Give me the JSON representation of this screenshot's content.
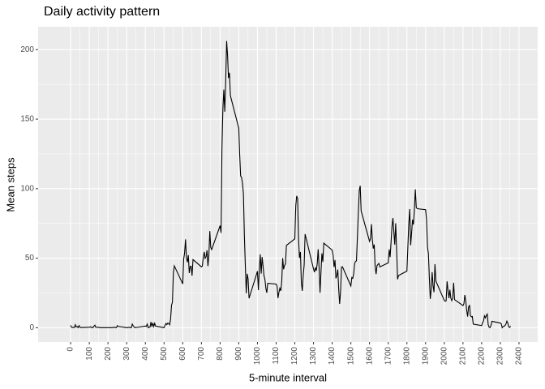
{
  "chart_data": {
    "type": "line",
    "title": "Daily activity pattern",
    "xlabel": "5-minute interval",
    "ylabel": "Mean steps",
    "x": [
      0,
      5,
      10,
      15,
      20,
      25,
      30,
      35,
      40,
      45,
      50,
      55,
      100,
      105,
      110,
      115,
      120,
      125,
      130,
      135,
      140,
      145,
      150,
      155,
      200,
      205,
      210,
      215,
      220,
      225,
      230,
      235,
      240,
      245,
      250,
      255,
      300,
      305,
      310,
      315,
      320,
      325,
      330,
      335,
      340,
      345,
      350,
      355,
      400,
      405,
      410,
      415,
      420,
      425,
      430,
      435,
      440,
      445,
      450,
      455,
      500,
      505,
      510,
      515,
      520,
      525,
      530,
      535,
      540,
      545,
      550,
      555,
      600,
      605,
      610,
      615,
      620,
      625,
      630,
      635,
      640,
      645,
      650,
      655,
      700,
      705,
      710,
      715,
      720,
      725,
      730,
      735,
      740,
      745,
      750,
      755,
      800,
      805,
      810,
      815,
      820,
      825,
      830,
      835,
      840,
      845,
      850,
      855,
      900,
      905,
      910,
      915,
      920,
      925,
      930,
      935,
      940,
      945,
      950,
      955,
      1000,
      1005,
      1010,
      1015,
      1020,
      1025,
      1030,
      1035,
      1040,
      1045,
      1050,
      1055,
      1100,
      1105,
      1110,
      1115,
      1120,
      1125,
      1130,
      1135,
      1140,
      1145,
      1150,
      1155,
      1200,
      1205,
      1210,
      1215,
      1220,
      1225,
      1230,
      1235,
      1240,
      1245,
      1250,
      1255,
      1300,
      1305,
      1310,
      1315,
      1320,
      1325,
      1330,
      1335,
      1340,
      1345,
      1350,
      1355,
      1400,
      1405,
      1410,
      1415,
      1420,
      1425,
      1430,
      1435,
      1440,
      1445,
      1450,
      1455,
      1500,
      1505,
      1510,
      1515,
      1520,
      1525,
      1530,
      1535,
      1540,
      1545,
      1550,
      1555,
      1600,
      1605,
      1610,
      1615,
      1620,
      1625,
      1630,
      1635,
      1640,
      1645,
      1650,
      1655,
      1700,
      1705,
      1710,
      1715,
      1720,
      1725,
      1730,
      1735,
      1740,
      1745,
      1750,
      1755,
      1800,
      1805,
      1810,
      1815,
      1820,
      1825,
      1830,
      1835,
      1840,
      1845,
      1850,
      1855,
      1900,
      1905,
      1910,
      1915,
      1920,
      1925,
      1930,
      1935,
      1940,
      1945,
      1950,
      1955,
      2000,
      2005,
      2010,
      2015,
      2020,
      2025,
      2030,
      2035,
      2040,
      2045,
      2050,
      2055,
      2100,
      2105,
      2110,
      2115,
      2120,
      2125,
      2130,
      2135,
      2140,
      2145,
      2150,
      2155,
      2200,
      2205,
      2210,
      2215,
      2220,
      2225,
      2230,
      2235,
      2240,
      2245,
      2250,
      2255,
      2300,
      2305,
      2310,
      2315,
      2320,
      2325,
      2330,
      2335,
      2340,
      2345,
      2350,
      2355
    ],
    "series": [
      {
        "name": "Mean steps",
        "color": "#000000",
        "values": [
          1.7,
          0.3,
          0.1,
          0.2,
          0.1,
          2.1,
          0.5,
          0.9,
          0,
          1.5,
          0.3,
          0.1,
          0.3,
          0.7,
          0.2,
          0.3,
          0,
          1.1,
          1.8,
          0.2,
          0.2,
          0.4,
          0.3,
          0,
          0,
          0,
          0,
          0,
          0,
          0,
          0.3,
          0.3,
          0,
          0,
          1.5,
          0.9,
          0,
          0,
          0.2,
          0.3,
          0,
          0,
          2.6,
          1.3,
          0.5,
          0,
          0.1,
          0.2,
          1.2,
          0.9,
          2.6,
          0,
          0.3,
          0.4,
          4.1,
          0.7,
          3.5,
          0.8,
          3.1,
          1.1,
          0,
          1.6,
          3,
          2.2,
          3.3,
          3,
          2.1,
          6.1,
          16,
          18.3,
          39.5,
          44.5,
          31.5,
          49.3,
          53.8,
          63.5,
          50,
          47.1,
          52.2,
          39.3,
          44,
          44.2,
          37.4,
          49,
          43.8,
          44.4,
          50.5,
          54.5,
          49.9,
          51,
          55.7,
          44.3,
          52.3,
          69.5,
          57.8,
          56.2,
          73.4,
          68.2,
          129.4,
          157.5,
          171.2,
          155.4,
          177.3,
          206.2,
          195.9,
          179.6,
          183.4,
          167,
          143.5,
          124,
          109.1,
          108.1,
          103.7,
          96,
          66.2,
          45.2,
          24.8,
          38.8,
          35,
          21.1,
          40.6,
          27,
          42.4,
          52.7,
          38.9,
          50.8,
          44.3,
          37.4,
          34.7,
          28.3,
          25.1,
          31.9,
          31.4,
          29.7,
          21.3,
          25.5,
          28.4,
          26.5,
          33.4,
          50,
          42,
          44.6,
          46,
          59.2,
          63.9,
          87.7,
          94.8,
          92.8,
          63.4,
          50.2,
          54.5,
          32.4,
          26.5,
          37.7,
          45.1,
          67.3,
          42.3,
          39.9,
          43.3,
          41,
          46.2,
          56.4,
          42.8,
          25.1,
          40,
          53.5,
          47.3,
          60.8,
          55.8,
          52,
          43.6,
          48.7,
          35.5,
          37.5,
          41.8,
          27.5,
          17.1,
          26.1,
          43.6,
          43.8,
          30,
          36.1,
          35.5,
          38.8,
          46,
          47.8,
          48.1,
          65.3,
          82.9,
          98.7,
          102.1,
          84,
          62.1,
          64.1,
          74.5,
          63.2,
          56.9,
          59.8,
          43.9,
          38.6,
          44.7,
          45.5,
          46.2,
          43.7,
          46.6,
          56.3,
          50.7,
          61.2,
          72.7,
          78.9,
          68.9,
          59.7,
          75.1,
          56.5,
          34.8,
          37.5,
          40.7,
          58,
          74.7,
          85.3,
          59.3,
          67.8,
          77.7,
          74.2,
          85.3,
          99.5,
          86.6,
          85.6,
          84.9,
          77.8,
          58,
          53.4,
          36.3,
          20.7,
          27.4,
          40,
          30.2,
          25.5,
          45.7,
          33.5,
          19.6,
          19,
          19.3,
          33.3,
          26.8,
          21.2,
          27.3,
          21.3,
          19.5,
          21.3,
          32.3,
          20.2,
          15.9,
          17.2,
          23.5,
          19.2,
          12.5,
          8,
          14.7,
          16.3,
          8.7,
          7.8,
          8.1,
          2.6,
          1.5,
          3.7,
          4.8,
          8.5,
          7.1,
          8.7,
          9.8,
          2.2,
          0.3,
          0.1,
          1.6,
          4.6,
          3.3,
          2.8,
          0,
          0.8,
          1,
          1.6,
          2.6,
          4.7,
          3.3,
          0.6,
          0.2,
          1.1
        ]
      }
    ],
    "xlim": [
      -174,
      2500
    ],
    "xticks": [
      0,
      100,
      200,
      300,
      400,
      500,
      600,
      700,
      800,
      900,
      1000,
      1100,
      1200,
      1300,
      1400,
      1500,
      1600,
      1700,
      1800,
      1900,
      2000,
      2100,
      2200,
      2300,
      2400
    ],
    "ylim": [
      -10.3,
      216.5
    ],
    "yticks": [
      0,
      50,
      100,
      150,
      200
    ],
    "grid": true
  }
}
